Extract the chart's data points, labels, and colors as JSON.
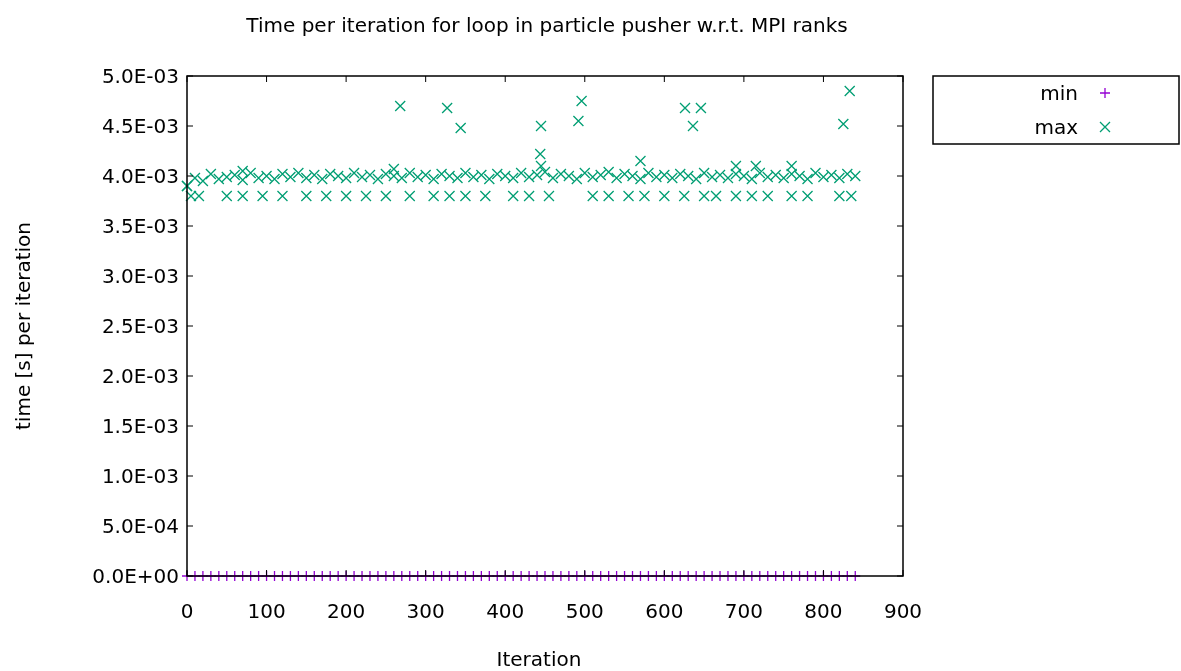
{
  "chart_data": {
    "type": "scatter",
    "title": "Time per iteration for loop in particle pusher w.r.t. MPI ranks",
    "xlabel": "Iteration",
    "ylabel": "time [s] per iteration",
    "xlim": [
      0,
      900
    ],
    "xticks": [
      0,
      100,
      200,
      300,
      400,
      500,
      600,
      700,
      800,
      900
    ],
    "ylim": [
      0,
      0.005
    ],
    "yticks": [
      {
        "value": 0,
        "label": "0.0E+00"
      },
      {
        "value": 0.0005,
        "label": "5.0E-04"
      },
      {
        "value": 0.001,
        "label": "1.0E-03"
      },
      {
        "value": 0.0015,
        "label": "1.5E-03"
      },
      {
        "value": 0.002,
        "label": "2.0E-03"
      },
      {
        "value": 0.0025,
        "label": "2.5E-03"
      },
      {
        "value": 0.003,
        "label": "3.0E-03"
      },
      {
        "value": 0.0035,
        "label": "3.5E-03"
      },
      {
        "value": 0.004,
        "label": "4.0E-03"
      },
      {
        "value": 0.0045,
        "label": "4.5E-03"
      },
      {
        "value": 0.005,
        "label": "5.0E-03"
      }
    ],
    "grid": false,
    "legend": "top right",
    "series": [
      {
        "name": "min",
        "color": "#9400d3",
        "marker": "plus",
        "x": [
          0,
          10,
          20,
          30,
          40,
          50,
          60,
          70,
          80,
          90,
          100,
          110,
          120,
          130,
          140,
          150,
          160,
          170,
          180,
          190,
          200,
          210,
          220,
          230,
          240,
          250,
          260,
          270,
          280,
          290,
          300,
          310,
          320,
          330,
          340,
          350,
          360,
          370,
          380,
          390,
          400,
          410,
          420,
          430,
          440,
          450,
          460,
          470,
          480,
          490,
          500,
          510,
          520,
          530,
          540,
          550,
          560,
          570,
          580,
          590,
          600,
          610,
          620,
          630,
          640,
          650,
          660,
          670,
          680,
          690,
          700,
          710,
          720,
          730,
          740,
          750,
          760,
          770,
          780,
          790,
          800,
          810,
          820,
          830,
          840
        ],
        "values": [
          0,
          0,
          0,
          0,
          0,
          0,
          0,
          0,
          0,
          0,
          0,
          0,
          0,
          0,
          0,
          0,
          0,
          0,
          0,
          0,
          0,
          0,
          0,
          0,
          0,
          0,
          0,
          0,
          0,
          0,
          0,
          0,
          0,
          0,
          0,
          0,
          0,
          0,
          0,
          0,
          0,
          0,
          0,
          0,
          0,
          0,
          0,
          0,
          0,
          0,
          0,
          0,
          0,
          0,
          0,
          0,
          0,
          0,
          0,
          0,
          0,
          0,
          0,
          0,
          0,
          0,
          0,
          0,
          0,
          0,
          0,
          0,
          0,
          0,
          0,
          0,
          0,
          0,
          0,
          0,
          0,
          0,
          0,
          0,
          0
        ]
      },
      {
        "name": "max",
        "color": "#009e73",
        "marker": "cross",
        "x": [
          0,
          10,
          20,
          30,
          40,
          50,
          60,
          70,
          80,
          90,
          100,
          110,
          120,
          130,
          140,
          150,
          160,
          170,
          180,
          190,
          200,
          210,
          220,
          230,
          240,
          250,
          260,
          270,
          280,
          290,
          300,
          310,
          320,
          330,
          340,
          350,
          360,
          370,
          380,
          390,
          400,
          410,
          420,
          430,
          440,
          450,
          460,
          470,
          480,
          490,
          500,
          510,
          520,
          530,
          540,
          550,
          560,
          570,
          580,
          590,
          600,
          610,
          620,
          630,
          640,
          650,
          660,
          670,
          680,
          690,
          700,
          710,
          720,
          730,
          740,
          750,
          760,
          770,
          780,
          790,
          800,
          810,
          820,
          830,
          840,
          5,
          15,
          50,
          70,
          95,
          120,
          150,
          175,
          200,
          225,
          250,
          280,
          310,
          330,
          350,
          375,
          410,
          430,
          455,
          510,
          530,
          555,
          575,
          600,
          625,
          650,
          665,
          690,
          710,
          730,
          760,
          780,
          820,
          835,
          0,
          70,
          260,
          445,
          570,
          690,
          715,
          760,
          268,
          327,
          344,
          445,
          444,
          492,
          496,
          626,
          636,
          646,
          825,
          833
        ],
        "values": [
          0.0039,
          0.00398,
          0.00395,
          0.00402,
          0.00397,
          0.00399,
          0.00401,
          0.00396,
          0.00403,
          0.00398,
          0.004,
          0.00397,
          0.00402,
          0.00399,
          0.00403,
          0.00398,
          0.00401,
          0.00397,
          0.00402,
          0.004,
          0.00398,
          0.00403,
          0.00399,
          0.00401,
          0.00397,
          0.00402,
          0.004,
          0.00398,
          0.00403,
          0.00399,
          0.00401,
          0.00397,
          0.00402,
          0.004,
          0.00398,
          0.00403,
          0.00399,
          0.00401,
          0.00397,
          0.00402,
          0.004,
          0.00398,
          0.00403,
          0.00399,
          0.00401,
          0.00404,
          0.00398,
          0.00402,
          0.004,
          0.00397,
          0.00403,
          0.00399,
          0.00401,
          0.00404,
          0.00398,
          0.00402,
          0.004,
          0.00397,
          0.00403,
          0.00399,
          0.00401,
          0.00398,
          0.00402,
          0.004,
          0.00397,
          0.00403,
          0.00399,
          0.00401,
          0.00398,
          0.00402,
          0.004,
          0.00397,
          0.00403,
          0.00399,
          0.00401,
          0.00398,
          0.00402,
          0.004,
          0.00397,
          0.00403,
          0.00399,
          0.00401,
          0.00398,
          0.00402,
          0.004,
          0.0038,
          0.0038,
          0.0038,
          0.0038,
          0.0038,
          0.0038,
          0.0038,
          0.0038,
          0.0038,
          0.0038,
          0.0038,
          0.0038,
          0.0038,
          0.0038,
          0.0038,
          0.0038,
          0.0038,
          0.0038,
          0.0038,
          0.0038,
          0.0038,
          0.0038,
          0.0038,
          0.0038,
          0.0038,
          0.0038,
          0.0038,
          0.0038,
          0.0038,
          0.0038,
          0.0038,
          0.0038,
          0.0038,
          0.0038,
          0.0039,
          0.00405,
          0.00407,
          0.0041,
          0.00415,
          0.0041,
          0.0041,
          0.0041,
          0.0047,
          0.00468,
          0.00448,
          0.0045,
          0.00422,
          0.00455,
          0.00475,
          0.00468,
          0.0045,
          0.00468,
          0.00452,
          0.00485
        ]
      }
    ]
  }
}
